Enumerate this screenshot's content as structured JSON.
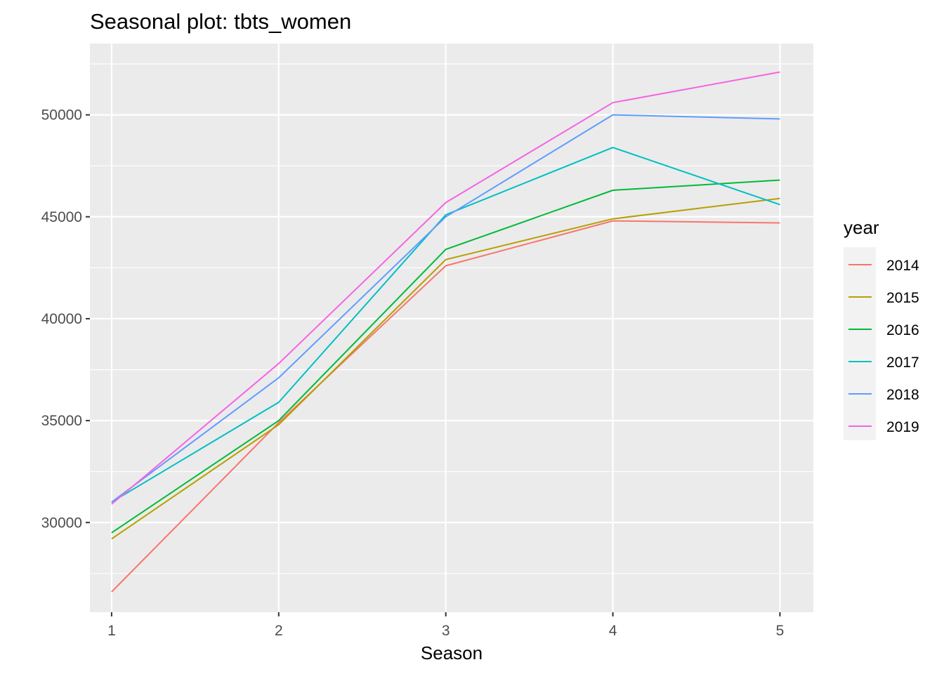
{
  "chart_data": {
    "type": "line",
    "title": "Seasonal plot: tbts_women",
    "xlabel": "Season",
    "ylabel": "",
    "x": [
      1,
      2,
      3,
      4,
      5
    ],
    "xlim": [
      0.87,
      5.2
    ],
    "ylim": [
      25600,
      53500
    ],
    "y_ticks": [
      30000,
      35000,
      40000,
      45000,
      50000
    ],
    "y_tick_labels": [
      "30000",
      "35000",
      "40000",
      "45000",
      "50000"
    ],
    "x_tick_labels": [
      "1",
      "2",
      "3",
      "4",
      "5"
    ],
    "grid": true,
    "legend": {
      "title": "year",
      "position": "right"
    },
    "series": [
      {
        "name": "2014",
        "color": "#F8766D",
        "values": [
          26600,
          34900,
          42600,
          44800,
          44700
        ]
      },
      {
        "name": "2015",
        "color": "#B79F00",
        "values": [
          29200,
          34800,
          42900,
          44900,
          45900
        ]
      },
      {
        "name": "2016",
        "color": "#00BA38",
        "values": [
          29500,
          35000,
          43400,
          46300,
          46800
        ]
      },
      {
        "name": "2017",
        "color": "#00BFC4",
        "values": [
          31000,
          35900,
          45100,
          48400,
          45600
        ]
      },
      {
        "name": "2018",
        "color": "#619CFF",
        "values": [
          31000,
          37100,
          45000,
          50000,
          49800
        ]
      },
      {
        "name": "2019",
        "color": "#F564E3",
        "values": [
          30900,
          37800,
          45700,
          50600,
          52100
        ]
      }
    ]
  }
}
